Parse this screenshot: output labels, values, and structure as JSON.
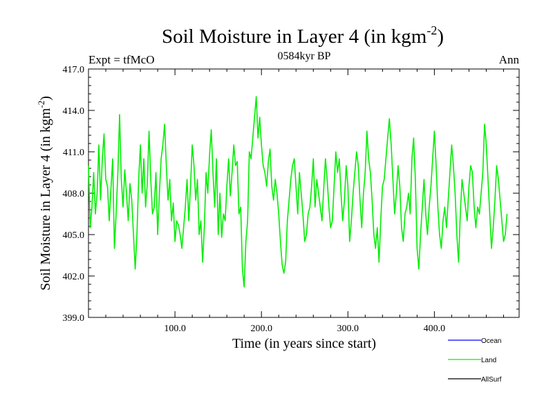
{
  "chart_data": {
    "type": "line",
    "title": "Soil Moisture in Layer 4 (in kgm",
    "title_sup": "-2",
    "title_close": ")",
    "subtitle_left": "Expt = tfMcO",
    "subtitle_center": "0584kyr BP",
    "subtitle_right": "Ann",
    "xlabel": "Time (in years since start)",
    "ylabel": "Soil Moisture in Layer 4 (in kgm",
    "ylabel_sup": "-2",
    "ylabel_close": ")",
    "xlim": [
      0,
      498
    ],
    "ylim": [
      399.0,
      417.0
    ],
    "xticks": [
      100,
      200,
      300,
      400
    ],
    "xtick_labels": [
      "100.0",
      "200.0",
      "300.0",
      "400.0"
    ],
    "yticks": [
      399,
      402,
      405,
      408,
      411,
      414,
      417
    ],
    "ytick_labels": [
      "399.0",
      "402.0",
      "405.0",
      "408.0",
      "411.0",
      "414.0",
      "417.0"
    ],
    "legend": [
      {
        "name": "Ocean",
        "color": "#0000ff"
      },
      {
        "name": "Land",
        "color": "#00ee00"
      },
      {
        "name": "AllSurf",
        "color": "#000000"
      }
    ],
    "series": [
      {
        "name": "Land",
        "color": "#00ee00",
        "x_start": 0,
        "x_step": 2,
        "values": [
          410.0,
          405.5,
          407.0,
          409.5,
          406.5,
          408.0,
          411.5,
          407.5,
          410.5,
          412.3,
          409.0,
          408.5,
          406.0,
          408.3,
          410.5,
          404.0,
          406.5,
          409.5,
          413.7,
          409.0,
          407.0,
          409.7,
          408.0,
          406.0,
          408.7,
          407.5,
          405.0,
          402.5,
          405.0,
          409.0,
          411.5,
          408.0,
          410.5,
          407.0,
          408.7,
          412.5,
          409.0,
          406.5,
          407.0,
          409.5,
          405.0,
          408.0,
          410.5,
          411.5,
          413.0,
          410.0,
          407.5,
          409.0,
          406.0,
          407.3,
          404.5,
          406.0,
          405.7,
          405.0,
          404.0,
          405.5,
          407.0,
          409.0,
          406.0,
          408.5,
          411.5,
          410.0,
          407.5,
          409.0,
          405.0,
          406.0,
          403.0,
          405.5,
          409.5,
          408.0,
          410.7,
          412.6,
          409.5,
          407.0,
          410.5,
          405.0,
          408.0,
          404.8,
          406.5,
          406.0,
          408.5,
          410.5,
          407.8,
          409.5,
          411.5,
          410.0,
          410.3,
          406.5,
          407.0,
          402.5,
          401.2,
          404.5,
          406.0,
          411.0,
          410.5,
          412.0,
          413.5,
          415.0,
          412.0,
          413.5,
          411.5,
          410.0,
          409.5,
          408.5,
          410.3,
          411.2,
          408.5,
          407.5,
          409.0,
          408.0,
          406.5,
          404.5,
          402.8,
          402.2,
          403.0,
          406.0,
          407.5,
          409.0,
          410.0,
          410.5,
          408.5,
          406.5,
          409.5,
          408.0,
          406.5,
          404.5,
          405.0,
          406.5,
          407.0,
          408.5,
          410.5,
          407.0,
          409.0,
          408.0,
          407.0,
          406.0,
          408.3,
          410.5,
          409.0,
          407.0,
          405.5,
          406.0,
          408.5,
          411.0,
          409.5,
          410.5,
          408.0,
          406.0,
          407.5,
          410.0,
          408.5,
          404.5,
          406.0,
          408.0,
          409.5,
          411.0,
          410.0,
          407.5,
          405.5,
          408.0,
          409.5,
          412.5,
          410.5,
          409.5,
          407.5,
          405.0,
          404.0,
          405.5,
          403.0,
          406.0,
          408.5,
          409.0,
          410.5,
          412.0,
          413.4,
          411.5,
          409.0,
          406.5,
          408.0,
          410.0,
          408.5,
          405.5,
          404.5,
          406.5,
          407.0,
          408.0,
          406.5,
          410.5,
          412.0,
          409.0,
          404.0,
          402.5,
          405.0,
          407.0,
          409.0,
          406.5,
          405.0,
          407.0,
          408.5,
          410.5,
          412.5,
          410.0,
          407.0,
          405.0,
          404.0,
          406.0,
          407.0,
          405.5,
          407.5,
          409.5,
          411.5,
          410.0,
          408.0,
          405.0,
          403.0,
          406.5,
          409.0,
          408.0,
          407.0,
          406.0,
          408.5,
          410.0,
          409.5,
          407.0,
          405.5,
          407.0,
          406.5,
          408.0,
          409.5,
          413.0,
          411.5,
          409.0,
          406.5,
          404.0,
          405.5,
          407.5,
          410.0,
          409.0,
          407.5,
          406.0,
          404.5,
          405.0,
          406.5
        ]
      }
    ]
  }
}
